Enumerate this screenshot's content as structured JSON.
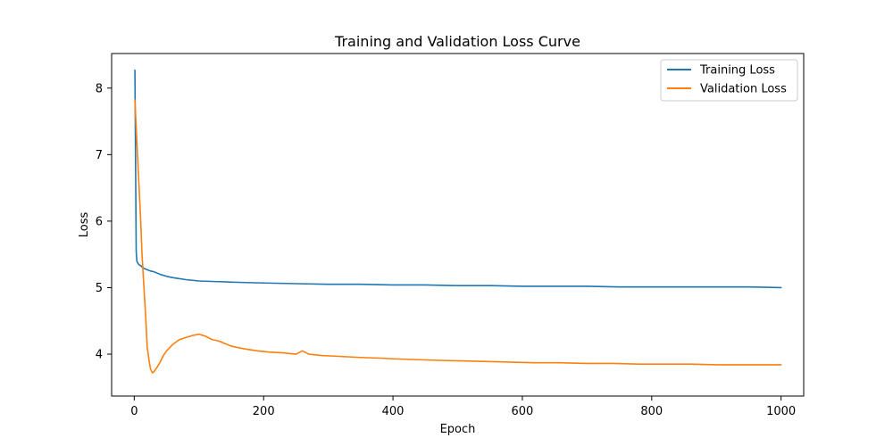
{
  "chart_data": {
    "type": "line",
    "title": "Training and Validation Loss Curve",
    "xlabel": "Epoch",
    "ylabel": "Loss",
    "xlim": [
      -35,
      1035
    ],
    "ylim": [
      3.37,
      8.52
    ],
    "xticks": [
      0,
      200,
      400,
      600,
      800,
      1000
    ],
    "yticks": [
      4,
      5,
      6,
      7,
      8
    ],
    "grid": false,
    "legend_position": "top-right",
    "series": [
      {
        "name": "Training Loss",
        "color": "#1f77b4",
        "points": [
          [
            1,
            8.27
          ],
          [
            2,
            6.9
          ],
          [
            3,
            5.55
          ],
          [
            4,
            5.4
          ],
          [
            6,
            5.36
          ],
          [
            8,
            5.34
          ],
          [
            10,
            5.33
          ],
          [
            12,
            5.31
          ],
          [
            15,
            5.29
          ],
          [
            20,
            5.27
          ],
          [
            25,
            5.25
          ],
          [
            30,
            5.24
          ],
          [
            40,
            5.2
          ],
          [
            50,
            5.17
          ],
          [
            60,
            5.15
          ],
          [
            80,
            5.12
          ],
          [
            100,
            5.1
          ],
          [
            130,
            5.09
          ],
          [
            160,
            5.08
          ],
          [
            200,
            5.07
          ],
          [
            250,
            5.06
          ],
          [
            300,
            5.05
          ],
          [
            350,
            5.05
          ],
          [
            400,
            5.04
          ],
          [
            450,
            5.04
          ],
          [
            500,
            5.03
          ],
          [
            550,
            5.03
          ],
          [
            600,
            5.02
          ],
          [
            650,
            5.02
          ],
          [
            700,
            5.02
          ],
          [
            750,
            5.01
          ],
          [
            800,
            5.01
          ],
          [
            850,
            5.01
          ],
          [
            900,
            5.01
          ],
          [
            950,
            5.01
          ],
          [
            1000,
            5.0
          ]
        ]
      },
      {
        "name": "Validation Loss",
        "color": "#ff7f0e",
        "points": [
          [
            1,
            7.82
          ],
          [
            3,
            7.4
          ],
          [
            5,
            7.0
          ],
          [
            8,
            6.4
          ],
          [
            10,
            6.0
          ],
          [
            12,
            5.5
          ],
          [
            15,
            5.0
          ],
          [
            18,
            4.5
          ],
          [
            20,
            4.1
          ],
          [
            23,
            3.9
          ],
          [
            25,
            3.78
          ],
          [
            28,
            3.72
          ],
          [
            30,
            3.73
          ],
          [
            35,
            3.8
          ],
          [
            40,
            3.88
          ],
          [
            45,
            3.98
          ],
          [
            50,
            4.05
          ],
          [
            60,
            4.15
          ],
          [
            70,
            4.22
          ],
          [
            80,
            4.25
          ],
          [
            90,
            4.28
          ],
          [
            100,
            4.3
          ],
          [
            110,
            4.27
          ],
          [
            120,
            4.22
          ],
          [
            130,
            4.2
          ],
          [
            140,
            4.16
          ],
          [
            150,
            4.12
          ],
          [
            170,
            4.08
          ],
          [
            190,
            4.05
          ],
          [
            210,
            4.03
          ],
          [
            230,
            4.02
          ],
          [
            250,
            4.0
          ],
          [
            260,
            4.05
          ],
          [
            270,
            4.0
          ],
          [
            290,
            3.98
          ],
          [
            310,
            3.97
          ],
          [
            330,
            3.96
          ],
          [
            350,
            3.95
          ],
          [
            380,
            3.94
          ],
          [
            400,
            3.93
          ],
          [
            430,
            3.92
          ],
          [
            460,
            3.91
          ],
          [
            500,
            3.9
          ],
          [
            540,
            3.89
          ],
          [
            580,
            3.88
          ],
          [
            620,
            3.87
          ],
          [
            660,
            3.87
          ],
          [
            700,
            3.86
          ],
          [
            740,
            3.86
          ],
          [
            780,
            3.85
          ],
          [
            820,
            3.85
          ],
          [
            860,
            3.85
          ],
          [
            900,
            3.84
          ],
          [
            940,
            3.84
          ],
          [
            970,
            3.84
          ],
          [
            1000,
            3.84
          ]
        ]
      }
    ]
  }
}
